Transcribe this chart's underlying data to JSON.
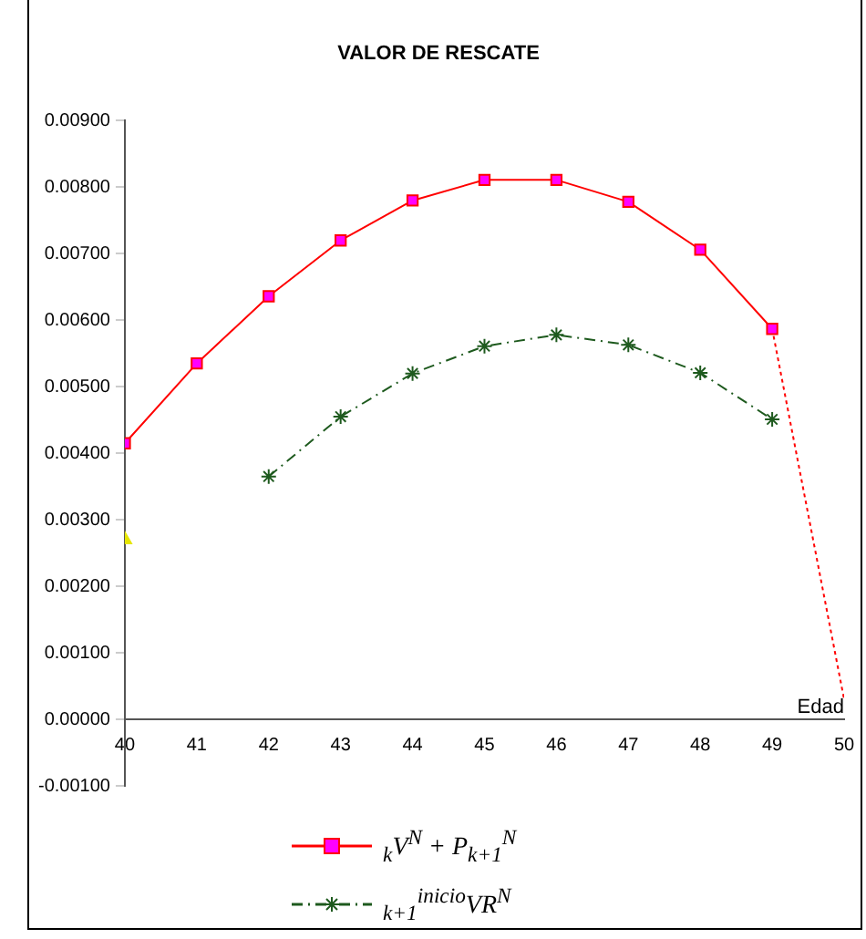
{
  "chart_data": {
    "type": "line",
    "title": "VALOR DE RESCATE",
    "xlabel": "Edad",
    "xlim": [
      40,
      50
    ],
    "xticks": [
      40,
      41,
      42,
      43,
      44,
      45,
      46,
      47,
      48,
      49,
      50
    ],
    "ylim": [
      -0.001,
      0.009
    ],
    "yticks": [
      {
        "value": -0.001,
        "label": "-0.00100"
      },
      {
        "value": 0,
        "label": "0.00000"
      },
      {
        "value": 0.001,
        "label": "0.00100"
      },
      {
        "value": 0.002,
        "label": "0.00200"
      },
      {
        "value": 0.003,
        "label": "0.00300"
      },
      {
        "value": 0.004,
        "label": "0.00400"
      },
      {
        "value": 0.005,
        "label": "0.00500"
      },
      {
        "value": 0.006,
        "label": "0.00600"
      },
      {
        "value": 0.007,
        "label": "0.00700"
      },
      {
        "value": 0.008,
        "label": "0.00800"
      },
      {
        "value": 0.009,
        "label": "0.00900"
      }
    ],
    "grid": false,
    "legend": "bottom",
    "series": [
      {
        "name": "$_{k}$V$^{N}$ + P$_{k+1}$$^{N}$",
        "color": "#ff0000",
        "marker": "square",
        "line_style": "solid",
        "x": [
          40,
          41,
          42,
          43,
          44,
          45,
          46,
          47,
          48,
          49
        ],
        "values": [
          0.00415,
          0.00535,
          0.00636,
          0.0072,
          0.0078,
          0.00811,
          0.00811,
          0.00778,
          0.00706,
          0.00587
        ]
      },
      {
        "name": "$_{k+1}$$^{inicio}$VR$^{N}$",
        "color": "#1e5a1e",
        "marker": "cross",
        "line_style": "dashed",
        "x": [
          42,
          43,
          44,
          45,
          46,
          47,
          48,
          49
        ],
        "values": [
          0.00365,
          0.00455,
          0.0052,
          0.00561,
          0.00578,
          0.00563,
          0.00521,
          0.00451
        ]
      },
      {
        "color": "#ff0000",
        "marker": "none",
        "line_style": "dotted",
        "x": [
          49,
          50
        ],
        "values": [
          0.00587,
          0.0003
        ]
      },
      {
        "type": "scatter",
        "color": "#e6e600",
        "marker": "triangle",
        "x": [
          40
        ],
        "values": [
          0.0027
        ]
      }
    ]
  }
}
